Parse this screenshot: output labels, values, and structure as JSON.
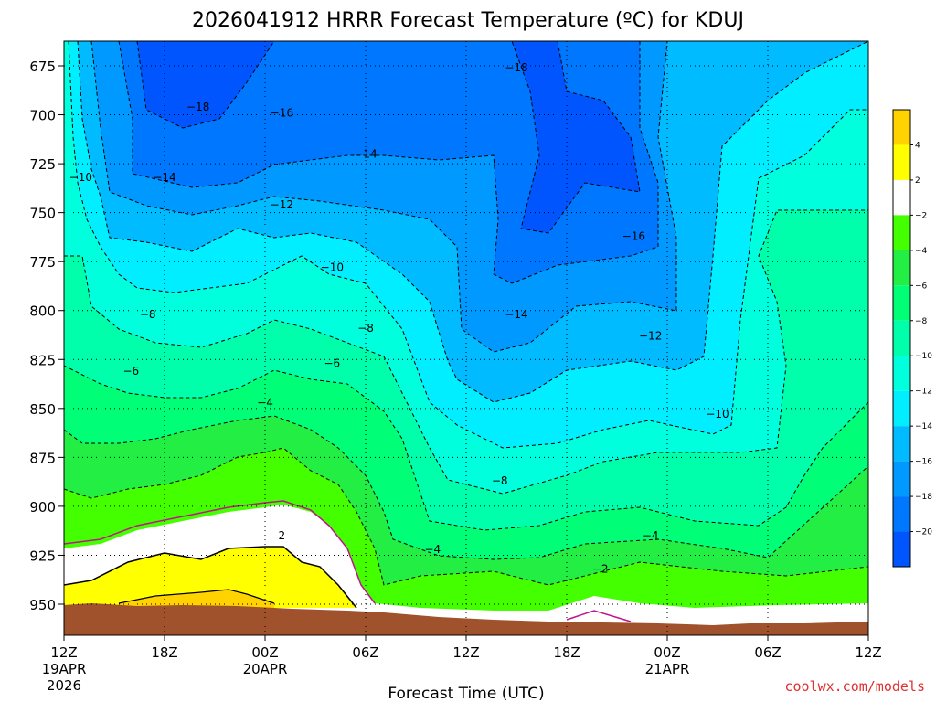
{
  "chart_data": {
    "type": "heatmap",
    "title": "2026041912 HRRR Forecast Temperature (ºC) for KDUJ",
    "xlabel": "Forecast Time (UTC)",
    "ylabel": "",
    "y_axis": {
      "ticks": [
        675,
        700,
        725,
        750,
        775,
        800,
        825,
        850,
        875,
        900,
        925,
        950
      ],
      "inverted": true
    },
    "x_axis": {
      "ticks": [
        {
          "hour": 0,
          "label": "12Z",
          "sub": "19APR",
          "sub2": "2026"
        },
        {
          "hour": 6,
          "label": "18Z",
          "sub": "",
          "sub2": ""
        },
        {
          "hour": 12,
          "label": "00Z",
          "sub": "20APR",
          "sub2": ""
        },
        {
          "hour": 18,
          "label": "06Z",
          "sub": "",
          "sub2": ""
        },
        {
          "hour": 24,
          "label": "12Z",
          "sub": "",
          "sub2": ""
        },
        {
          "hour": 30,
          "label": "18Z",
          "sub": "",
          "sub2": ""
        },
        {
          "hour": 36,
          "label": "00Z",
          "sub": "21APR",
          "sub2": ""
        },
        {
          "hour": 42,
          "label": "06Z",
          "sub": "",
          "sub2": ""
        },
        {
          "hour": 48,
          "label": "12Z",
          "sub": "",
          "sub2": ""
        }
      ]
    },
    "grid": true,
    "colorbar": {
      "labels": [
        "4",
        "2",
        "-2",
        "-4",
        "-6",
        "-8",
        "-10",
        "-12",
        "-14",
        "-16",
        "-18",
        "-20"
      ],
      "colors": [
        "#ffd200",
        "#ffff00",
        "#ffffff",
        "#44ff00",
        "#22ee44",
        "#00ff77",
        "#00ffaa",
        "#00ffdd",
        "#00eeff",
        "#00bbff",
        "#0099ff",
        "#0077ff",
        "#0055ff"
      ]
    },
    "contour_labels": [
      {
        "text": "-18",
        "hour": 27,
        "p": 676
      },
      {
        "text": "-18",
        "hour": 8,
        "p": 696
      },
      {
        "text": "-16",
        "hour": 13,
        "p": 699
      },
      {
        "text": "-14",
        "hour": 18,
        "p": 720
      },
      {
        "text": "-14",
        "hour": 6,
        "p": 732
      },
      {
        "text": "-10",
        "hour": 1,
        "p": 732
      },
      {
        "text": "-12",
        "hour": 13,
        "p": 746
      },
      {
        "text": "-16",
        "hour": 34,
        "p": 762
      },
      {
        "text": "-10",
        "hour": 16,
        "p": 778
      },
      {
        "text": "-8",
        "hour": 5,
        "p": 802
      },
      {
        "text": "-14",
        "hour": 27,
        "p": 802
      },
      {
        "text": "-8",
        "hour": 18,
        "p": 809
      },
      {
        "text": "-12",
        "hour": 35,
        "p": 813
      },
      {
        "text": "-6",
        "hour": 16,
        "p": 827
      },
      {
        "text": "-6",
        "hour": 4,
        "p": 831
      },
      {
        "text": "-4",
        "hour": 12,
        "p": 847
      },
      {
        "text": "-10",
        "hour": 39,
        "p": 853
      },
      {
        "text": "-8",
        "hour": 26,
        "p": 887
      },
      {
        "text": "2",
        "hour": 13,
        "p": 915
      },
      {
        "text": "-4",
        "hour": 22,
        "p": 922
      },
      {
        "text": "-4",
        "hour": 35,
        "p": 915
      },
      {
        "text": "-2",
        "hour": 32,
        "p": 932
      }
    ]
  },
  "credit": "coolwx.com/models"
}
